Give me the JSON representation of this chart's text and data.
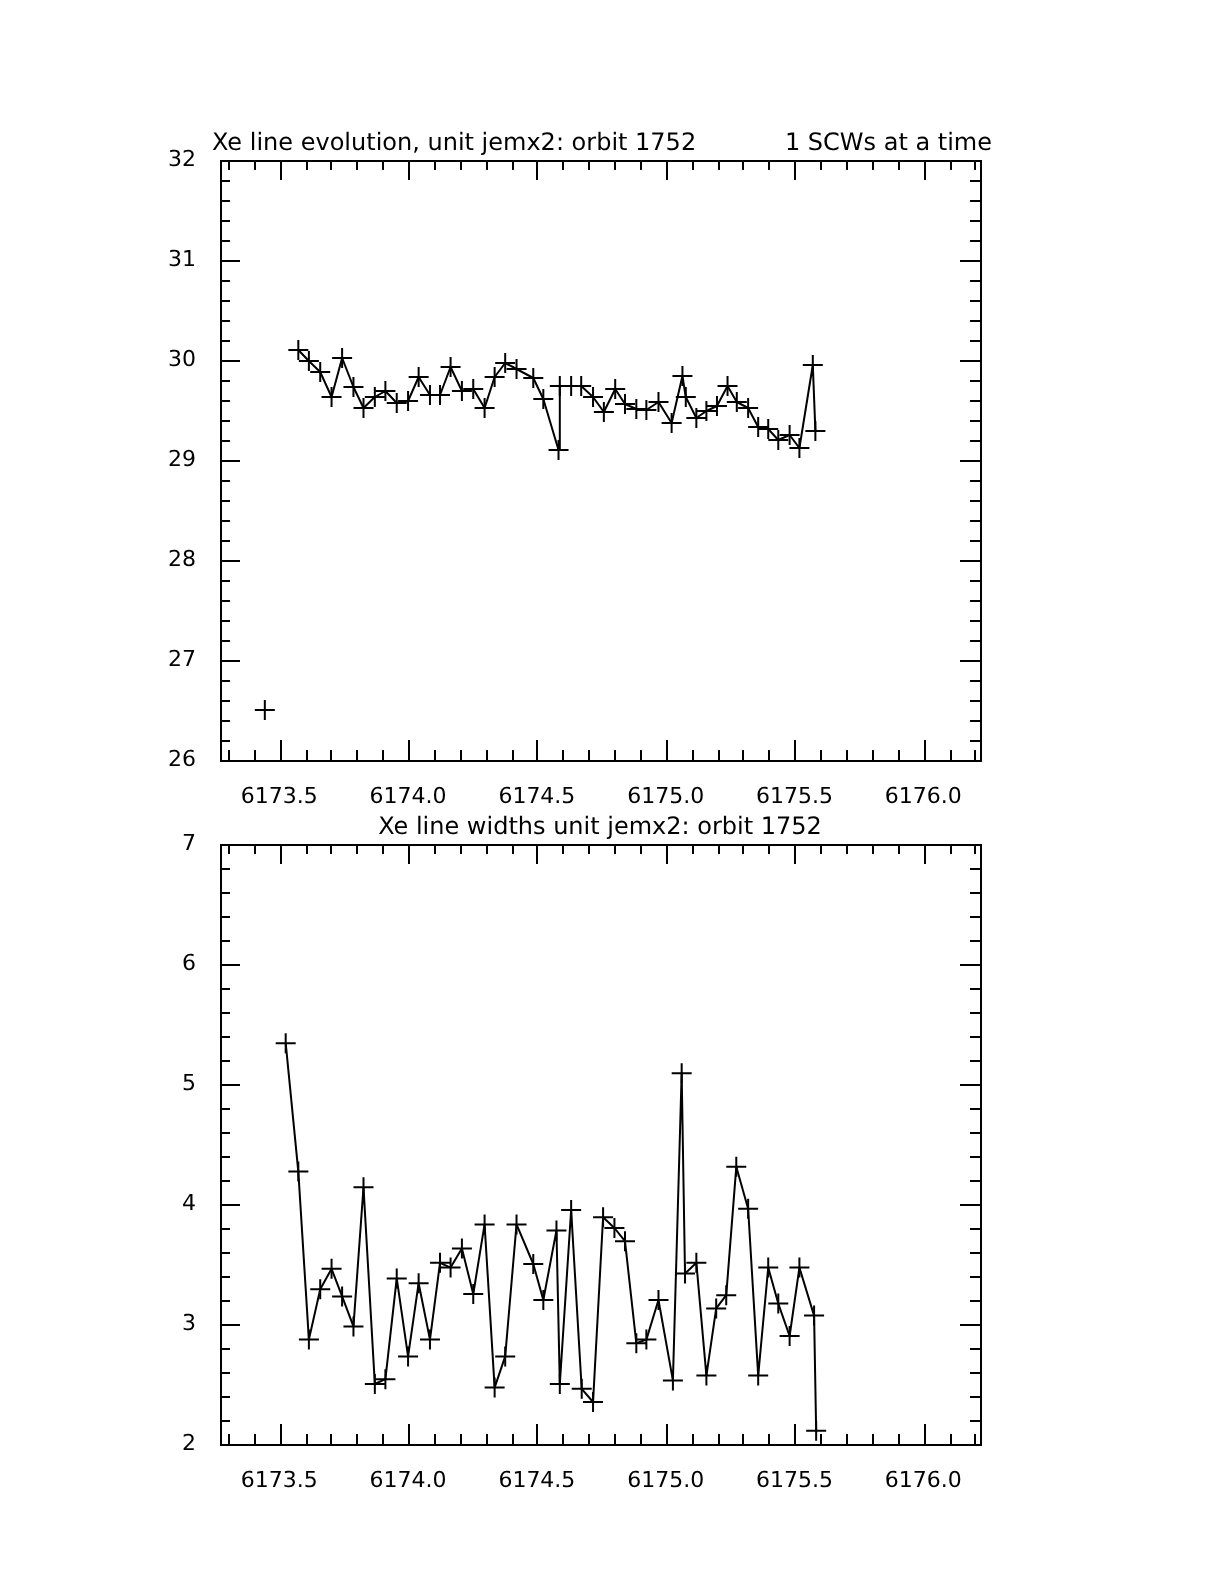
{
  "chart_data": [
    {
      "type": "line",
      "title": "Xe line evolution, unit jemx2: orbit 1752",
      "annotations": [
        "1 SCWs at a time"
      ],
      "marker": "cross",
      "color": "#000000",
      "x": [
        6173.444,
        6173.5,
        6173.574,
        6173.615,
        6173.659,
        6173.703,
        6173.744,
        6173.788,
        6173.827,
        6173.871,
        6173.912,
        6173.956,
        6174.0,
        6174.041,
        6174.085,
        6174.124,
        6174.165,
        6174.209,
        6174.253,
        6174.297,
        6174.336,
        6174.377,
        6174.421,
        6174.486,
        6174.525,
        6174.584,
        6174.589,
        6174.633,
        6174.672,
        6174.718,
        6174.76,
        6174.804,
        6174.842,
        6174.886,
        6174.925,
        6174.972,
        6175.023,
        6175.065,
        6175.078,
        6175.119,
        6175.158,
        6175.199,
        6175.24,
        6175.276,
        6175.32,
        6175.359,
        6175.398,
        6175.437,
        6175.481,
        6175.519,
        6175.571,
        6175.581
      ],
      "values": [
        26.5,
        null,
        30.1,
        29.99,
        29.88,
        29.63,
        30.02,
        29.73,
        29.52,
        29.63,
        29.69,
        29.57,
        29.59,
        29.83,
        29.65,
        29.65,
        29.93,
        29.69,
        29.71,
        29.52,
        29.83,
        29.97,
        29.91,
        29.82,
        29.61,
        29.1,
        29.74,
        29.74,
        29.74,
        29.63,
        29.48,
        29.71,
        29.56,
        29.51,
        29.5,
        29.58,
        29.37,
        29.84,
        29.63,
        29.42,
        29.49,
        29.54,
        29.74,
        29.58,
        29.52,
        29.33,
        29.31,
        29.2,
        29.25,
        29.12,
        29.95,
        29.29
      ],
      "xlim": [
        6173.27,
        6176.22
      ],
      "xticks": [
        {
          "value": 6173.3,
          "label": null
        },
        {
          "value": 6173.4,
          "label": null
        },
        {
          "value": 6173.5,
          "label": "6173.5"
        },
        {
          "value": 6173.6,
          "label": null
        },
        {
          "value": 6173.7,
          "label": null
        },
        {
          "value": 6173.8,
          "label": null
        },
        {
          "value": 6173.9,
          "label": null
        },
        {
          "value": 6174.0,
          "label": "6174.0"
        },
        {
          "value": 6174.1,
          "label": null
        },
        {
          "value": 6174.2,
          "label": null
        },
        {
          "value": 6174.3,
          "label": null
        },
        {
          "value": 6174.4,
          "label": null
        },
        {
          "value": 6174.5,
          "label": "6174.5"
        },
        {
          "value": 6174.6,
          "label": null
        },
        {
          "value": 6174.7,
          "label": null
        },
        {
          "value": 6174.8,
          "label": null
        },
        {
          "value": 6174.9,
          "label": null
        },
        {
          "value": 6175.0,
          "label": "6175.0"
        },
        {
          "value": 6175.1,
          "label": null
        },
        {
          "value": 6175.2,
          "label": null
        },
        {
          "value": 6175.3,
          "label": null
        },
        {
          "value": 6175.4,
          "label": null
        },
        {
          "value": 6175.5,
          "label": "6175.5"
        },
        {
          "value": 6175.6,
          "label": null
        },
        {
          "value": 6175.7,
          "label": null
        },
        {
          "value": 6175.8,
          "label": null
        },
        {
          "value": 6175.9,
          "label": null
        },
        {
          "value": 6176.0,
          "label": "6176.0"
        },
        {
          "value": 6176.1,
          "label": null
        },
        {
          "value": 6176.2,
          "label": null
        }
      ],
      "ylim": [
        26,
        32
      ],
      "yticks": [
        26,
        {
          "value": 26.2,
          "label": null
        },
        {
          "value": 26.4,
          "label": null
        },
        {
          "value": 26.6,
          "label": null
        },
        {
          "value": 26.8,
          "label": null
        },
        27,
        {
          "value": 27.2,
          "label": null
        },
        {
          "value": 27.4,
          "label": null
        },
        {
          "value": 27.6,
          "label": null
        },
        {
          "value": 27.8,
          "label": null
        },
        28,
        {
          "value": 28.2,
          "label": null
        },
        {
          "value": 28.4,
          "label": null
        },
        {
          "value": 28.6,
          "label": null
        },
        {
          "value": 28.8,
          "label": null
        },
        29,
        {
          "value": 29.2,
          "label": null
        },
        {
          "value": 29.4,
          "label": null
        },
        {
          "value": 29.6,
          "label": null
        },
        {
          "value": 29.8,
          "label": null
        },
        30,
        {
          "value": 30.2,
          "label": null
        },
        {
          "value": 30.4,
          "label": null
        },
        {
          "value": 30.6,
          "label": null
        },
        {
          "value": 30.8,
          "label": null
        },
        31,
        {
          "value": 31.2,
          "label": null
        },
        {
          "value": 31.4,
          "label": null
        },
        {
          "value": 31.6,
          "label": null
        },
        {
          "value": 31.8,
          "label": null
        },
        32
      ]
    },
    {
      "type": "line",
      "title": "Xe line widths unit jemx2: orbit 1752",
      "marker": "cross",
      "color": "#000000",
      "x": [
        6173.525,
        6173.574,
        6173.615,
        6173.659,
        6173.703,
        6173.744,
        6173.788,
        6173.827,
        6173.871,
        6173.912,
        6173.956,
        6174.0,
        6174.041,
        6174.085,
        6174.124,
        6174.165,
        6174.209,
        6174.253,
        6174.297,
        6174.336,
        6174.377,
        6174.421,
        6174.486,
        6174.525,
        6174.576,
        6174.589,
        6174.633,
        6174.674,
        6174.718,
        6174.757,
        6174.801,
        6174.842,
        6174.886,
        6174.925,
        6174.972,
        6175.028,
        6175.062,
        6175.075,
        6175.119,
        6175.158,
        6175.196,
        6175.235,
        6175.274,
        6175.32,
        6175.359,
        6175.398,
        6175.437,
        6175.481,
        6175.519,
        6175.576,
        6175.584
      ],
      "values": [
        5.34,
        4.27,
        2.87,
        3.29,
        3.46,
        3.23,
        2.98,
        4.14,
        2.5,
        2.54,
        3.38,
        2.73,
        3.34,
        2.87,
        3.51,
        3.47,
        3.63,
        3.25,
        3.83,
        2.47,
        2.73,
        3.83,
        3.5,
        3.2,
        3.78,
        2.5,
        3.95,
        2.46,
        2.35,
        3.89,
        3.8,
        3.69,
        2.84,
        2.87,
        3.2,
        2.53,
        5.09,
        3.42,
        3.51,
        2.57,
        3.13,
        3.24,
        4.31,
        3.96,
        2.57,
        3.47,
        3.17,
        2.9,
        3.47,
        3.07,
        2.11
      ],
      "xlim": [
        6173.27,
        6176.22
      ],
      "xticks": [
        {
          "value": 6173.3,
          "label": null
        },
        {
          "value": 6173.4,
          "label": null
        },
        {
          "value": 6173.5,
          "label": "6173.5"
        },
        {
          "value": 6173.6,
          "label": null
        },
        {
          "value": 6173.7,
          "label": null
        },
        {
          "value": 6173.8,
          "label": null
        },
        {
          "value": 6173.9,
          "label": null
        },
        {
          "value": 6174.0,
          "label": "6174.0"
        },
        {
          "value": 6174.1,
          "label": null
        },
        {
          "value": 6174.2,
          "label": null
        },
        {
          "value": 6174.3,
          "label": null
        },
        {
          "value": 6174.4,
          "label": null
        },
        {
          "value": 6174.5,
          "label": "6174.5"
        },
        {
          "value": 6174.6,
          "label": null
        },
        {
          "value": 6174.7,
          "label": null
        },
        {
          "value": 6174.8,
          "label": null
        },
        {
          "value": 6174.9,
          "label": null
        },
        {
          "value": 6175.0,
          "label": "6175.0"
        },
        {
          "value": 6175.1,
          "label": null
        },
        {
          "value": 6175.2,
          "label": null
        },
        {
          "value": 6175.3,
          "label": null
        },
        {
          "value": 6175.4,
          "label": null
        },
        {
          "value": 6175.5,
          "label": "6175.5"
        },
        {
          "value": 6175.6,
          "label": null
        },
        {
          "value": 6175.7,
          "label": null
        },
        {
          "value": 6175.8,
          "label": null
        },
        {
          "value": 6175.9,
          "label": null
        },
        {
          "value": 6176.0,
          "label": "6176.0"
        },
        {
          "value": 6176.1,
          "label": null
        },
        {
          "value": 6176.2,
          "label": null
        }
      ],
      "ylim": [
        2,
        7
      ],
      "yticks": [
        2,
        {
          "value": 2.2,
          "label": null
        },
        {
          "value": 2.4,
          "label": null
        },
        {
          "value": 2.6,
          "label": null
        },
        {
          "value": 2.8,
          "label": null
        },
        3,
        {
          "value": 3.2,
          "label": null
        },
        {
          "value": 3.4,
          "label": null
        },
        {
          "value": 3.6,
          "label": null
        },
        {
          "value": 3.8,
          "label": null
        },
        4,
        {
          "value": 4.2,
          "label": null
        },
        {
          "value": 4.4,
          "label": null
        },
        {
          "value": 4.6,
          "label": null
        },
        {
          "value": 4.8,
          "label": null
        },
        5,
        {
          "value": 5.2,
          "label": null
        },
        {
          "value": 5.4,
          "label": null
        },
        {
          "value": 5.6,
          "label": null
        },
        {
          "value": 5.8,
          "label": null
        },
        6,
        {
          "value": 6.2,
          "label": null
        },
        {
          "value": 6.4,
          "label": null
        },
        {
          "value": 6.6,
          "label": null
        },
        {
          "value": 6.8,
          "label": null
        },
        7
      ]
    }
  ]
}
